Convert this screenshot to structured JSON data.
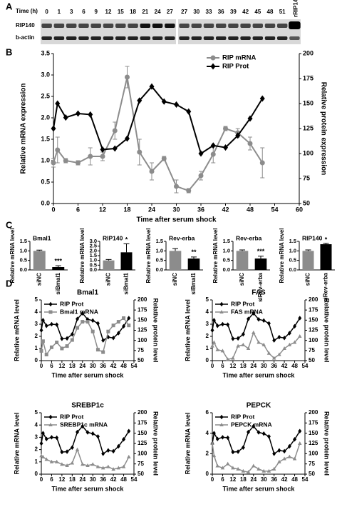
{
  "panel_labels": [
    "A",
    "B",
    "C",
    "D"
  ],
  "blot": {
    "time_label": "Time (h)",
    "times_left": [
      "0",
      "1",
      "3",
      "6",
      "9",
      "12",
      "15",
      "18",
      "21",
      "24",
      "27"
    ],
    "times_right": [
      "27",
      "30",
      "33",
      "36",
      "39",
      "42",
      "45",
      "48",
      "51"
    ],
    "control_lane": "rRIP140",
    "rows": [
      "RIP140",
      "b-actin"
    ]
  },
  "chart_data": [
    {
      "type": "line",
      "x": [
        0,
        1,
        3,
        6,
        9,
        12,
        15,
        18,
        21,
        24,
        27,
        30,
        33,
        36,
        39,
        42,
        45,
        48,
        51
      ],
      "series": [
        {
          "name": "RIP mRNA",
          "color": "#8c8c8c",
          "marker": "circle",
          "values": [
            0.95,
            1.25,
            1.0,
            0.95,
            1.1,
            1.1,
            1.7,
            2.95,
            1.2,
            0.75,
            1.05,
            0.4,
            0.3,
            0.65,
            1.15,
            1.75,
            1.65,
            1.4,
            0.95
          ],
          "errors": [
            0.1,
            0.3,
            0.05,
            0.05,
            0.2,
            0.1,
            0.2,
            0.25,
            0.3,
            0.2,
            0.05,
            0.15,
            0.05,
            0.1,
            0.2,
            0.05,
            0.1,
            0.15,
            0.35
          ]
        },
        {
          "name": "RIP Prot",
          "color": "#000000",
          "marker": "diamond",
          "axis": "y2",
          "values": [
            125,
            150,
            136,
            140,
            139,
            104,
            105,
            115,
            153,
            167,
            152,
            149,
            142,
            100,
            108,
            106,
            118,
            135,
            155
          ]
        }
      ],
      "xlim": [
        0,
        60
      ],
      "xticks": [
        0,
        6,
        12,
        18,
        24,
        30,
        36,
        42,
        48,
        54,
        60
      ],
      "ylim": [
        0,
        3.5
      ],
      "yticks": [
        {
          "value": 0,
          "label": "0.0"
        },
        0.5,
        {
          "value": 1,
          "label": "1.0"
        },
        1.5,
        {
          "value": 2,
          "label": "2.0"
        },
        2.5,
        {
          "value": 3,
          "label": "3.0"
        },
        3.5
      ],
      "y2lim": [
        50,
        200
      ],
      "y2ticks": [
        50,
        75,
        100,
        125,
        150,
        175,
        200
      ],
      "xlabel": "Time after serum shock",
      "ylabel": "Relative mRNA expression",
      "y2label": "Relative protein expression",
      "legend": "upper right"
    },
    {
      "type": "bar",
      "title": "Bmal1",
      "categories": [
        "siNC",
        "siBmal1"
      ],
      "values": [
        1.0,
        0.15
      ],
      "errors": [
        0.04,
        0.07
      ],
      "colors": [
        "#8c8c8c",
        "#000000"
      ],
      "ylim": [
        0,
        1.5
      ],
      "yticks": [
        {
          "value": 0,
          "label": "0.0"
        },
        0.5,
        {
          "value": 1,
          "label": "1.0"
        },
        1.5
      ],
      "ylabel": "Relative mRNA level",
      "annotation": "***"
    },
    {
      "type": "bar",
      "title": "RIP140",
      "categories": [
        "siNC",
        "siBmal1"
      ],
      "values": [
        1.0,
        1.85
      ],
      "errors": [
        0.1,
        0.9
      ],
      "colors": [
        "#8c8c8c",
        "#000000"
      ],
      "ylim": [
        0,
        3
      ],
      "yticks": [
        {
          "value": 0,
          "label": "0.0"
        },
        0.5,
        {
          "value": 1,
          "label": "1.0"
        },
        1.5,
        {
          "value": 2,
          "label": "2.0"
        },
        2.5,
        {
          "value": 3,
          "label": "3.0"
        }
      ],
      "ylabel": "Relative mRNA level",
      "annotation": "*"
    },
    {
      "type": "bar",
      "title": "Rev-erba",
      "categories": [
        "siNC",
        "siBmal1"
      ],
      "values": [
        1.0,
        0.6
      ],
      "errors": [
        0.12,
        0.08
      ],
      "colors": [
        "#8c8c8c",
        "#000000"
      ],
      "ylim": [
        0,
        1.5
      ],
      "yticks": [
        {
          "value": 0,
          "label": "0.0"
        },
        0.5,
        {
          "value": 1,
          "label": "1.0"
        },
        1.5
      ],
      "ylabel": "Relative mRNA level",
      "annotation": "**"
    },
    {
      "type": "bar",
      "title": "Rev-erba",
      "categories": [
        "siNC",
        "siRev-erba"
      ],
      "values": [
        1.0,
        0.6
      ],
      "errors": [
        0.05,
        0.12
      ],
      "colors": [
        "#8c8c8c",
        "#000000"
      ],
      "ylim": [
        0,
        1.5
      ],
      "yticks": [
        {
          "value": 0,
          "label": "0.0"
        },
        0.5,
        {
          "value": 1,
          "label": "1.0"
        },
        1.5
      ],
      "ylabel": "Relative mRNA level",
      "annotation": "***"
    },
    {
      "type": "bar",
      "title": "RIP140",
      "categories": [
        "siNC",
        "siRev-erba"
      ],
      "values": [
        1.0,
        1.35
      ],
      "errors": [
        0.05,
        0.05
      ],
      "colors": [
        "#8c8c8c",
        "#000000"
      ],
      "ylim": [
        0,
        1.5
      ],
      "yticks": [
        {
          "value": 0,
          "label": "0.0"
        },
        0.5,
        {
          "value": 1,
          "label": "1.0"
        },
        1.5
      ],
      "ylabel": "Relative mRNA level",
      "annotation": "*"
    },
    {
      "type": "line",
      "title": "Bmal1",
      "x": [
        0,
        1,
        3,
        6,
        9,
        12,
        15,
        18,
        21,
        24,
        27,
        30,
        33,
        36,
        39,
        42,
        45,
        48,
        51
      ],
      "series": [
        {
          "name": "RIP Prot",
          "color": "#000000",
          "marker": "diamond",
          "axis": "y2",
          "values": [
            125,
            150,
            136,
            140,
            139,
            104,
            105,
            115,
            153,
            167,
            152,
            149,
            142,
            100,
            108,
            106,
            118,
            135,
            155
          ]
        },
        {
          "name": "Bmal1 mRNA",
          "color": "#8c8c8c",
          "marker": "square",
          "values": [
            0.8,
            1.6,
            0.5,
            1.1,
            1.5,
            1.0,
            1.2,
            1.7,
            2.7,
            3.2,
            3.2,
            2.4,
            0.9,
            0.7,
            2.4,
            2.9,
            3.2,
            3.5,
            2.9
          ]
        }
      ],
      "xlim": [
        0,
        54
      ],
      "xticks": [
        0,
        6,
        12,
        18,
        24,
        30,
        36,
        42,
        48,
        54
      ],
      "ylim": [
        0,
        5
      ],
      "yticks": [
        0,
        1,
        2,
        3,
        4,
        5
      ],
      "y2lim": [
        50,
        200
      ],
      "y2ticks": [
        50,
        75,
        100,
        125,
        150,
        175,
        200
      ],
      "xlabel": "Time after serum shock",
      "ylabel": "Relative mRNA level",
      "y2label": "Relative protein level",
      "legend": "upper left"
    },
    {
      "type": "line",
      "title": "FAS",
      "x": [
        0,
        1,
        3,
        6,
        9,
        12,
        15,
        18,
        21,
        24,
        27,
        30,
        33,
        36,
        39,
        42,
        45,
        48,
        51
      ],
      "series": [
        {
          "name": "RIP Prot",
          "color": "#000000",
          "marker": "diamond",
          "axis": "y2",
          "values": [
            125,
            150,
            136,
            140,
            139,
            104,
            105,
            115,
            153,
            167,
            152,
            149,
            142,
            100,
            108,
            106,
            118,
            135,
            155
          ]
        },
        {
          "name": "FAS mRNA",
          "color": "#8c8c8c",
          "marker": "triangle",
          "values": [
            1.2,
            1.5,
            0.9,
            0.8,
            0.1,
            0.2,
            1.2,
            1.3,
            1.0,
            2.3,
            1.5,
            1.3,
            0.6,
            0.2,
            0.5,
            1.0,
            1.3,
            1.5,
            2.0
          ]
        }
      ],
      "xlim": [
        0,
        54
      ],
      "xticks": [
        0,
        6,
        12,
        18,
        24,
        30,
        36,
        42,
        48,
        54
      ],
      "ylim": [
        0,
        5
      ],
      "yticks": [
        0,
        1,
        2,
        3,
        4,
        5
      ],
      "y2lim": [
        50,
        200
      ],
      "y2ticks": [
        50,
        75,
        100,
        125,
        150,
        175,
        200
      ],
      "xlabel": "Time after serum shock",
      "ylabel": "Relative mRNA level",
      "y2label": "Relative protein level",
      "legend": "upper left"
    },
    {
      "type": "line",
      "title": "SREBP1c",
      "x": [
        0,
        1,
        3,
        6,
        9,
        12,
        15,
        18,
        21,
        24,
        27,
        30,
        33,
        36,
        39,
        42,
        45,
        48,
        51
      ],
      "series": [
        {
          "name": "RIP Prot",
          "color": "#000000",
          "marker": "diamond",
          "axis": "y2",
          "values": [
            125,
            150,
            136,
            140,
            139,
            104,
            105,
            115,
            153,
            167,
            152,
            149,
            142,
            100,
            108,
            106,
            118,
            135,
            155
          ]
        },
        {
          "name": "SREBP1c mRNA",
          "color": "#8c8c8c",
          "marker": "triangle",
          "values": [
            1.5,
            1.4,
            1.2,
            1.0,
            1.0,
            0.8,
            0.7,
            0.9,
            2.0,
            0.8,
            0.7,
            0.8,
            0.6,
            0.5,
            0.6,
            0.4,
            0.5,
            0.6,
            1.4
          ]
        }
      ],
      "xlim": [
        0,
        54
      ],
      "xticks": [
        0,
        6,
        12,
        18,
        24,
        30,
        36,
        42,
        48,
        54
      ],
      "ylim": [
        0,
        5
      ],
      "yticks": [
        0,
        1,
        2,
        3,
        4,
        5
      ],
      "y2lim": [
        50,
        200
      ],
      "y2ticks": [
        50,
        75,
        100,
        125,
        150,
        175,
        200
      ],
      "xlabel": "Time after serum shock",
      "ylabel": "Relative mRNA level",
      "y2label": "Relative protein level",
      "legend": "upper left"
    },
    {
      "type": "line",
      "title": "PEPCK",
      "x": [
        0,
        1,
        3,
        6,
        9,
        12,
        15,
        18,
        21,
        24,
        27,
        30,
        33,
        36,
        39,
        42,
        45,
        48,
        51
      ],
      "series": [
        {
          "name": "RIP Prot",
          "color": "#000000",
          "marker": "diamond",
          "axis": "y2",
          "values": [
            125,
            150,
            136,
            140,
            139,
            104,
            105,
            115,
            153,
            167,
            152,
            149,
            142,
            100,
            108,
            106,
            118,
            135,
            155
          ]
        },
        {
          "name": "PEPCK mRNA",
          "color": "#8c8c8c",
          "marker": "triangle",
          "values": [
            3.0,
            1.8,
            0.8,
            0.6,
            1.0,
            0.6,
            0.5,
            0.3,
            0.2,
            0.8,
            0.5,
            0.3,
            0.3,
            0.5,
            1.2,
            1.5,
            1.7,
            1.5,
            3.0
          ]
        }
      ],
      "xlim": [
        0,
        54
      ],
      "xticks": [
        0,
        6,
        12,
        18,
        24,
        30,
        36,
        42,
        48,
        54
      ],
      "ylim": [
        0,
        6
      ],
      "yticks": [
        0,
        2,
        4,
        6
      ],
      "y2lim": [
        50,
        200
      ],
      "y2ticks": [
        50,
        75,
        100,
        125,
        150,
        175,
        200
      ],
      "xlabel": "Time after serum shock",
      "ylabel": "Relative mRNA level",
      "y2label": "Relative protein level",
      "legend": "upper left"
    }
  ]
}
